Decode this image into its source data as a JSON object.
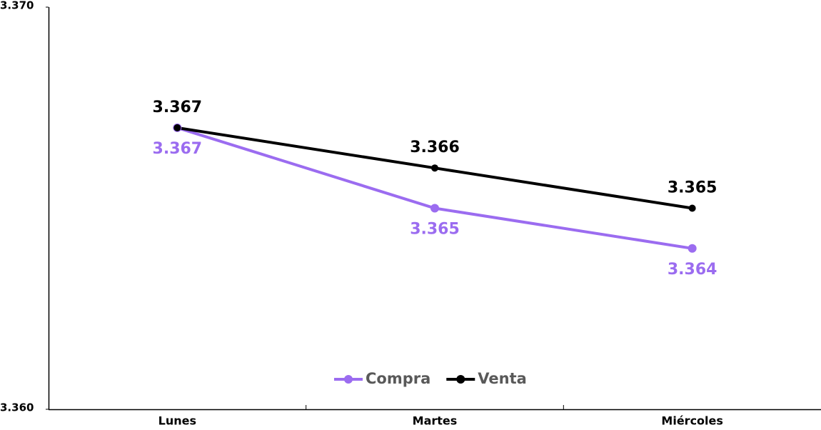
{
  "chart_data": {
    "type": "line",
    "categories": [
      "Lunes",
      "Martes",
      "Miércoles"
    ],
    "series": [
      {
        "name": "Compra",
        "color": "#9b6cf0",
        "values": [
          3.367,
          3.365,
          3.364
        ]
      },
      {
        "name": "Venta",
        "color": "#000000",
        "values": [
          3.367,
          3.366,
          3.365
        ]
      }
    ],
    "ylim": [
      3.36,
      3.37
    ],
    "yticks": [
      {
        "value": 3.36,
        "label": "3.360"
      },
      {
        "value": 3.37,
        "label": "3.370"
      }
    ],
    "grid": false,
    "legend": "bottom"
  }
}
